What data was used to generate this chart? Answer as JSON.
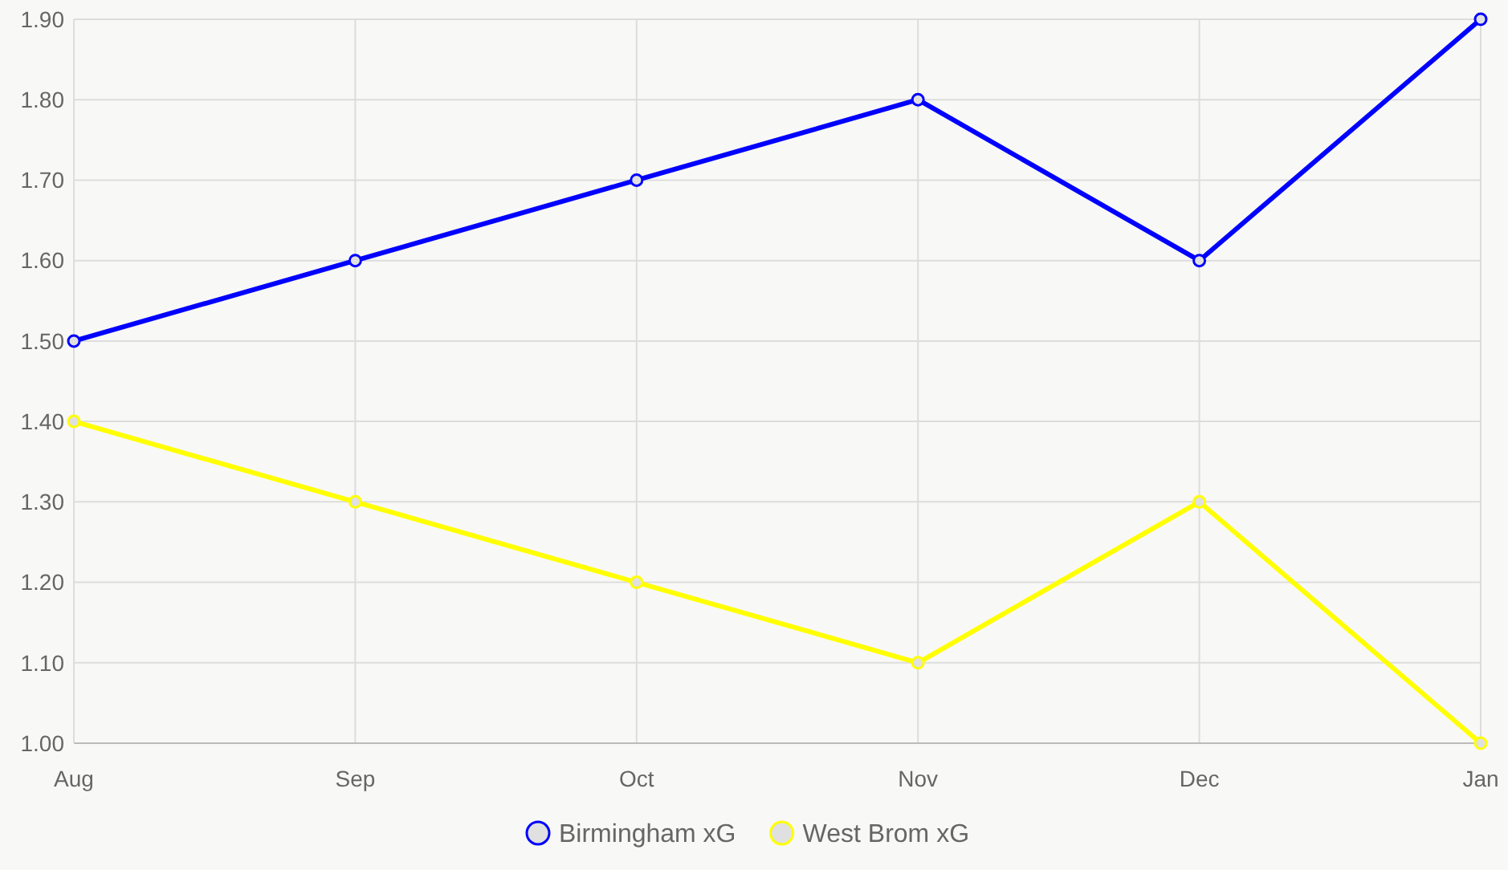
{
  "chart_data": {
    "type": "line",
    "categories": [
      "Aug",
      "Sep",
      "Oct",
      "Nov",
      "Dec",
      "Jan"
    ],
    "series": [
      {
        "name": "Birmingham xG",
        "color": "#0000ff",
        "values": [
          1.5,
          1.6,
          1.7,
          1.8,
          1.6,
          1.9
        ]
      },
      {
        "name": "West Brom xG",
        "color": "#ffff00",
        "values": [
          1.4,
          1.3,
          1.2,
          1.1,
          1.3,
          1.0
        ]
      }
    ],
    "ylim": [
      1.0,
      1.9
    ],
    "yticks": [
      {
        "value": 1.0,
        "label": "1.00"
      },
      {
        "value": 1.1,
        "label": "1.10"
      },
      {
        "value": 1.2,
        "label": "1.20"
      },
      {
        "value": 1.3,
        "label": "1.30"
      },
      {
        "value": 1.4,
        "label": "1.40"
      },
      {
        "value": 1.5,
        "label": "1.50"
      },
      {
        "value": 1.6,
        "label": "1.60"
      },
      {
        "value": 1.7,
        "label": "1.70"
      },
      {
        "value": 1.8,
        "label": "1.80"
      },
      {
        "value": 1.9,
        "label": "1.90"
      }
    ],
    "grid": true,
    "legend": "bottom",
    "marker": "circle",
    "line_style": "solid"
  }
}
